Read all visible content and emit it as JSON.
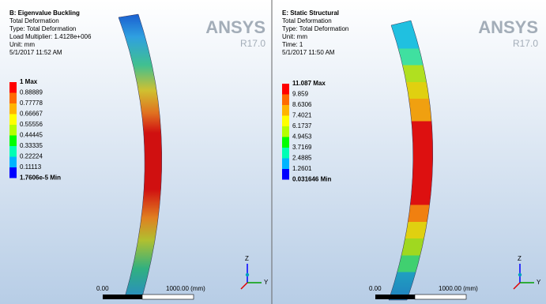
{
  "panels": [
    {
      "header": [
        "B: Eigenvalue Buckling",
        "Total Deformation",
        "Type: Total Deformation",
        "Load Multiplier: 1.4128e+006",
        "Unit: mm",
        "5/1/2017 11:52 AM"
      ],
      "logo": "ANSYS",
      "version": "R17.0",
      "legend": [
        "1 Max",
        "0.88889",
        "0.77778",
        "0.66667",
        "0.55556",
        "0.44445",
        "0.33335",
        "0.22224",
        "0.11113",
        "1.7606e-5 Min"
      ],
      "scale": [
        "0.00",
        "1000.00 (mm)"
      ],
      "axes": [
        "Z",
        "Y"
      ]
    },
    {
      "header": [
        "E: Static Structural",
        "Total Deformation",
        "Type: Total Deformation",
        "Unit: mm",
        "Time: 1",
        "5/1/2017 11:50 AM"
      ],
      "logo": "ANSYS",
      "version": "R17.0",
      "legend": [
        "11.087 Max",
        "9.859",
        "8.6306",
        "7.4021",
        "6.1737",
        "4.9453",
        "3.7169",
        "2.4885",
        "1.2601",
        "0.031646 Min"
      ],
      "scale": [
        "0.00",
        "1000.00 (mm)"
      ],
      "axes": [
        "Z",
        "Y"
      ]
    }
  ],
  "legend_colors": [
    "#ff0000",
    "#ff6a00",
    "#ffb400",
    "#ffff00",
    "#b4ff00",
    "#00ff00",
    "#00ffb4",
    "#00b4ff",
    "#0000ff"
  ]
}
